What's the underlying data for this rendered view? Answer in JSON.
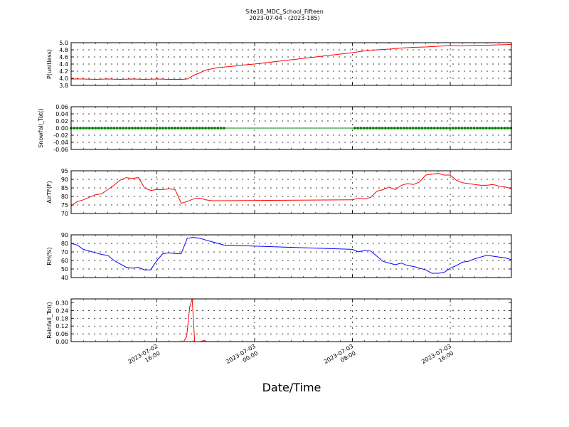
{
  "header": {
    "title": "Site18_MDC_School_Fifteen",
    "subtitle": "2023-07-04 - (2023-185)"
  },
  "chart_data": {
    "type": "line",
    "xlabel": "Date/Time",
    "x_ticks": [
      [
        "2023-07-02",
        "16:00"
      ],
      [
        "2023-07-03",
        "00:00"
      ],
      [
        "2023-07-03",
        "08:00"
      ],
      [
        "2023-07-03",
        "16:00"
      ]
    ],
    "x_tick_hours": [
      16,
      24,
      32,
      40
    ],
    "xlim_hours": [
      9,
      45
    ],
    "colors": {
      "red": "#ff0000",
      "green": "#008000",
      "blue": "#0000ff"
    },
    "panels": [
      {
        "ylabel": "P(unitless)",
        "ylim": [
          3.8,
          5.0
        ],
        "yticks": [
          "5.0",
          "4.8",
          "4.6",
          "4.4",
          "4.2",
          "4.0",
          "3.8"
        ],
        "color": "#ff0000",
        "markers": false,
        "x": [
          9,
          10,
          11,
          12,
          13,
          14,
          15,
          16,
          17,
          18,
          18.5,
          19,
          19.5,
          20,
          21,
          22,
          23,
          24,
          25,
          26,
          27,
          28,
          29,
          30,
          31,
          32,
          33,
          34,
          35,
          36,
          37,
          38,
          39,
          40,
          41,
          42,
          43,
          44,
          45
        ],
        "y": [
          3.98,
          3.98,
          3.97,
          3.98,
          3.97,
          3.98,
          3.97,
          3.98,
          3.97,
          3.97,
          3.98,
          4.08,
          4.15,
          4.23,
          4.3,
          4.33,
          4.37,
          4.4,
          4.44,
          4.48,
          4.52,
          4.56,
          4.6,
          4.64,
          4.68,
          4.72,
          4.77,
          4.8,
          4.82,
          4.85,
          4.87,
          4.88,
          4.9,
          4.92,
          4.91,
          4.93,
          4.93,
          4.94,
          4.95
        ]
      },
      {
        "ylabel": "Snowfall_Tot()",
        "ylim": [
          -0.06,
          0.06
        ],
        "yticks": [
          "0.06",
          "0.04",
          "0.02",
          "0.00",
          "-0.02",
          "-0.04",
          "-0.06"
        ],
        "color": "#008000",
        "markers": true,
        "marker_ranges": [
          [
            9,
            21.6
          ],
          [
            32.2,
            45
          ]
        ],
        "x": [
          9,
          45
        ],
        "y": [
          0,
          0
        ]
      },
      {
        "ylabel": "AirTF(F)",
        "ylim": [
          70,
          95
        ],
        "yticks": [
          "95",
          "90",
          "85",
          "80",
          "75",
          "70"
        ],
        "color": "#ff0000",
        "markers": false,
        "x": [
          9,
          9.5,
          10,
          10.5,
          11,
          11.5,
          12,
          12.5,
          13,
          13.5,
          14,
          14.5,
          15,
          15.5,
          16,
          16.5,
          17,
          17.5,
          18,
          18.5,
          19,
          19.5,
          20,
          20.5,
          21,
          21.5,
          32,
          32.5,
          33,
          33.5,
          34,
          34.5,
          35,
          35.5,
          36,
          36.5,
          37,
          37.5,
          38,
          38.5,
          39,
          39.5,
          40,
          40.5,
          41,
          41.5,
          42,
          42.5,
          43,
          43.5,
          44,
          44.5,
          45
        ],
        "y": [
          74.5,
          77,
          78,
          79.5,
          81,
          81.5,
          84,
          86.5,
          89.5,
          91,
          90.5,
          91,
          85,
          83.5,
          84,
          84,
          84.5,
          84,
          76,
          77,
          78.5,
          79,
          78,
          77.5,
          77.5,
          77.5,
          78,
          79,
          78.5,
          79.5,
          83,
          84,
          85.5,
          84,
          86.5,
          87.5,
          87,
          88.5,
          92.5,
          93,
          93.5,
          92.5,
          92.5,
          89.5,
          88,
          87.5,
          87,
          86.5,
          86.5,
          87,
          86,
          85.5,
          84.5
        ]
      },
      {
        "ylabel": "RH(%)",
        "ylim": [
          40,
          90
        ],
        "yticks": [
          "90",
          "80",
          "70",
          "60",
          "50",
          "40"
        ],
        "color": "#0000ff",
        "markers": false,
        "x": [
          9,
          9.5,
          10,
          10.5,
          11,
          11.5,
          12,
          12.5,
          13,
          13.5,
          14,
          14.5,
          15,
          15.5,
          16,
          16.5,
          17,
          17.5,
          18,
          18.5,
          19,
          19.5,
          20,
          20.5,
          21,
          21.5,
          32,
          32.5,
          33,
          33.5,
          34,
          34.5,
          35,
          35.5,
          36,
          36.5,
          37,
          37.5,
          38,
          38.5,
          39,
          39.5,
          40,
          40.5,
          41,
          41.5,
          42,
          42.5,
          43,
          43.5,
          44,
          44.5,
          45
        ],
        "y": [
          80,
          78,
          73,
          71,
          69,
          67,
          66,
          60,
          56,
          52,
          51,
          52,
          49,
          49,
          60,
          68,
          69,
          68,
          68,
          86,
          87,
          86,
          84,
          82,
          80,
          78,
          73,
          70,
          72,
          71,
          65,
          59,
          57,
          55,
          57,
          54,
          53,
          51,
          49,
          45,
          45,
          46,
          51,
          54,
          58,
          59,
          62,
          64,
          66,
          65,
          64,
          63,
          61
        ]
      },
      {
        "ylabel": "Rainfall_Tot()",
        "ylim": [
          0,
          0.33
        ],
        "yticks": [
          "0.30",
          "0.24",
          "0.18",
          "0.12",
          "0.06",
          "0.00"
        ],
        "color": "#ff0000",
        "markers": false,
        "x": [
          9,
          18.2,
          18.45,
          18.7,
          18.9,
          19.1,
          19.35,
          19.6,
          19.85,
          20,
          45
        ],
        "y": [
          0,
          0,
          0.04,
          0.27,
          0.33,
          0,
          0,
          0,
          0.01,
          0,
          0
        ]
      }
    ]
  }
}
